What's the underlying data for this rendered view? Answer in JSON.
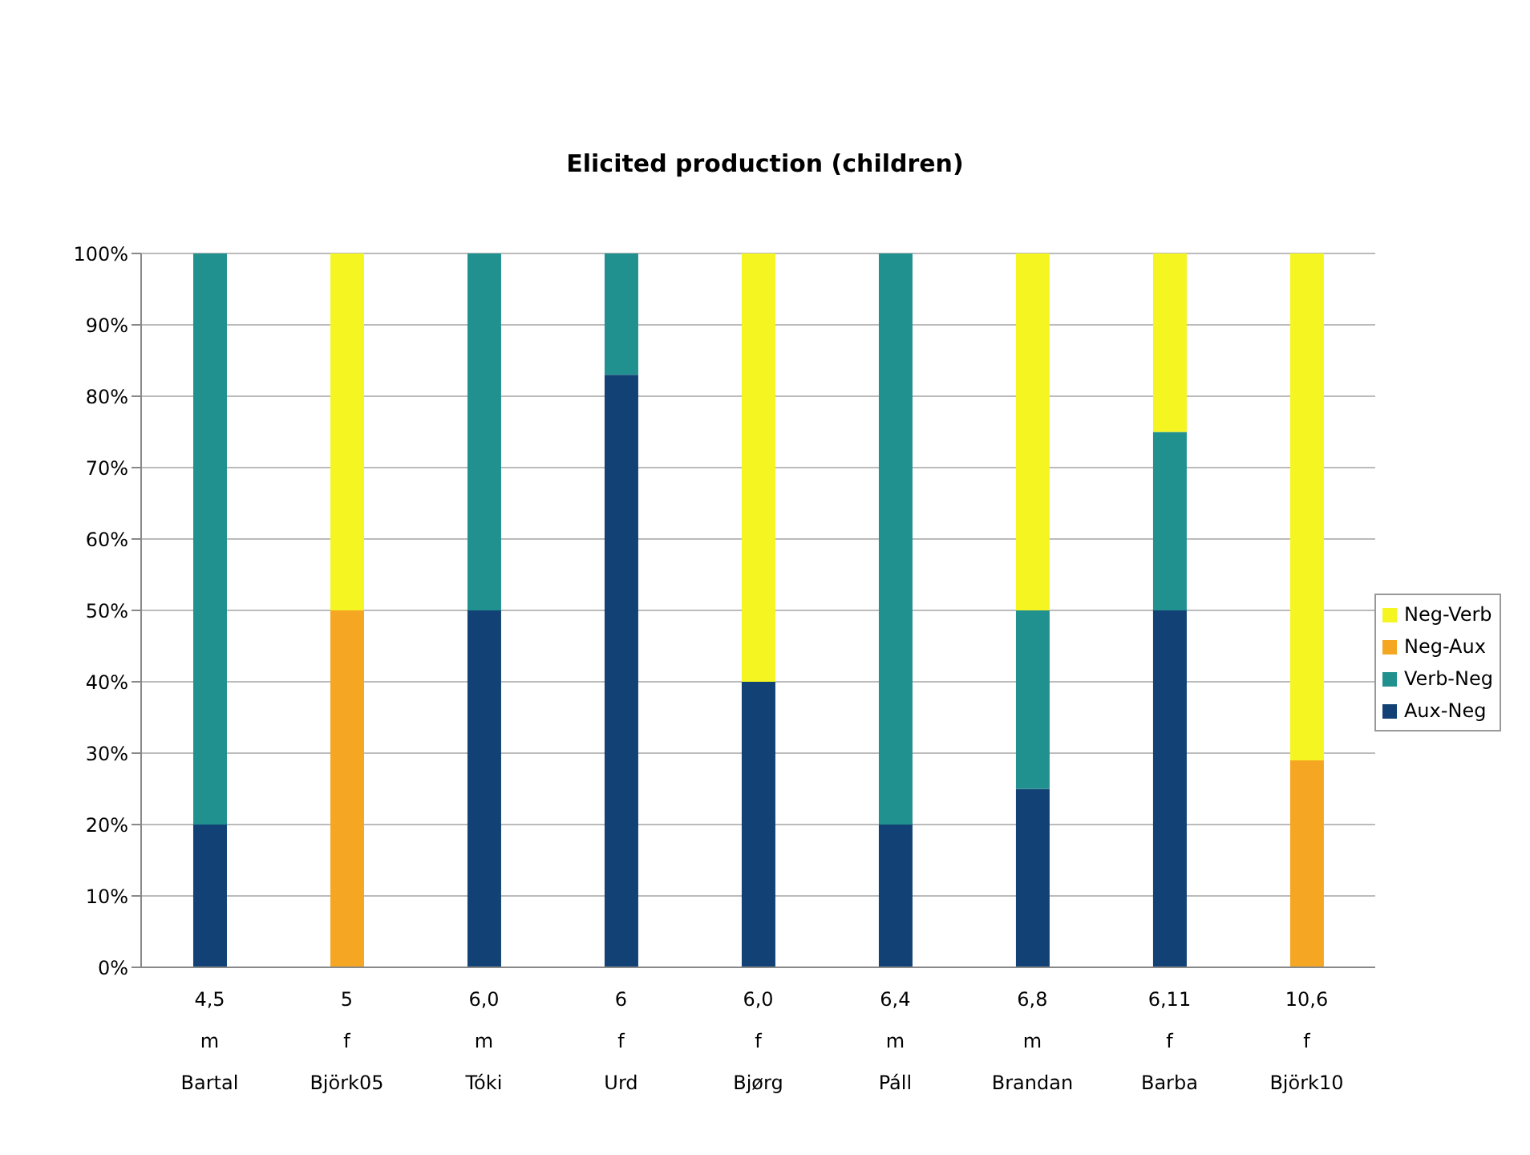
{
  "chart_data": {
    "type": "bar",
    "title": "Elicited production (children)",
    "stacked": true,
    "categories": [
      "4,5\nm\nBartal",
      "5\nf\nBjörk05",
      "6,0\nm\nTóki",
      "6\nf\nUrd",
      "6,0\nf\nBjørg",
      "6,4\nm\nPáll",
      "6,8\nm\nBrandan",
      "6,11\nf\nBarba",
      "10,6\nf\nBjörk10"
    ],
    "series": [
      {
        "name": "Aux-Neg",
        "color": "#124275",
        "values": [
          20,
          0,
          50,
          83,
          40,
          20,
          25,
          50,
          0
        ]
      },
      {
        "name": "Verb-Neg",
        "color": "#219190",
        "values": [
          80,
          0,
          50,
          17,
          0,
          80,
          25,
          25,
          0
        ]
      },
      {
        "name": "Neg-Aux",
        "color": "#f5a623",
        "values": [
          0,
          50,
          0,
          0,
          0,
          0,
          0,
          0,
          29
        ]
      },
      {
        "name": "Neg-Verb",
        "color": "#f5f522",
        "values": [
          0,
          50,
          0,
          0,
          60,
          0,
          50,
          25,
          71
        ]
      }
    ],
    "ylim": [
      0,
      100
    ],
    "yticks": [
      {
        "value": 0,
        "label": "0%"
      },
      {
        "value": 10,
        "label": "10%"
      },
      {
        "value": 20,
        "label": "20%"
      },
      {
        "value": 30,
        "label": "30%"
      },
      {
        "value": 40,
        "label": "40%"
      },
      {
        "value": 50,
        "label": "50%"
      },
      {
        "value": 60,
        "label": "60%"
      },
      {
        "value": 70,
        "label": "70%"
      },
      {
        "value": 80,
        "label": "80%"
      },
      {
        "value": 90,
        "label": "90%"
      },
      {
        "value": 100,
        "label": "100%"
      }
    ],
    "grid": "y",
    "legend": "right"
  }
}
